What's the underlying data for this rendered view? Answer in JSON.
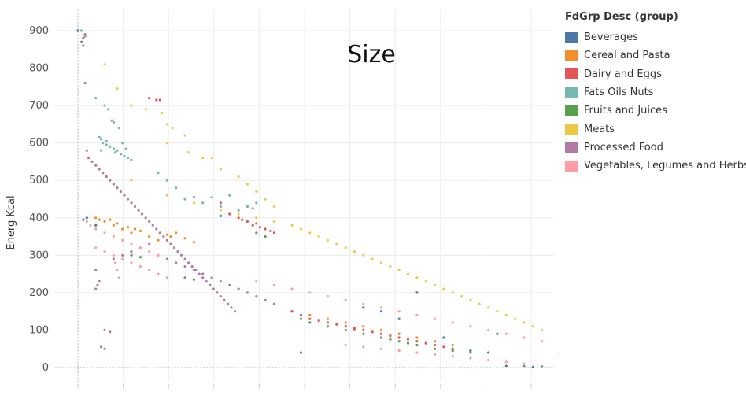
{
  "chart_data": {
    "type": "scatter",
    "title": "",
    "overlay_text": "Size",
    "xlabel": "",
    "ylabel": "Energ Kcal",
    "ylim": [
      0,
      920
    ],
    "yticks": [
      0,
      100,
      200,
      300,
      400,
      500,
      600,
      700,
      800,
      900
    ],
    "grid": true,
    "legend": {
      "title": "FdGrp Desc (group)",
      "position": "right"
    },
    "series": [
      {
        "name": "Beverages",
        "color": "#4e79a7",
        "points": [
          [
            0,
            900
          ],
          [
            0.2,
            870
          ],
          [
            0.5,
            400
          ],
          [
            0.3,
            395
          ],
          [
            25,
            3
          ],
          [
            26,
            2
          ],
          [
            24,
            4
          ],
          [
            25.5,
            1
          ],
          [
            27,
            35
          ],
          [
            23,
            40
          ],
          [
            22,
            45
          ],
          [
            21,
            50
          ],
          [
            23.5,
            90
          ],
          [
            20.5,
            80
          ],
          [
            18,
            130
          ],
          [
            17,
            150
          ],
          [
            19,
            200
          ],
          [
            16,
            160
          ],
          [
            12.5,
            40
          ],
          [
            8,
            405
          ],
          [
            1,
            380
          ]
        ]
      },
      {
        "name": "Cereal and Pasta",
        "color": "#f28e2b",
        "points": [
          [
            1,
            400
          ],
          [
            1.5,
            390
          ],
          [
            2,
            380
          ],
          [
            2.5,
            370
          ],
          [
            3,
            360
          ],
          [
            4,
            350
          ],
          [
            5,
            355
          ],
          [
            5.5,
            360
          ],
          [
            6,
            345
          ],
          [
            1.8,
            395
          ],
          [
            2.2,
            385
          ],
          [
            2.8,
            375
          ],
          [
            3.5,
            365
          ],
          [
            4.5,
            340
          ],
          [
            3.2,
            370
          ],
          [
            6.5,
            335
          ],
          [
            5.2,
            350
          ],
          [
            1.2,
            395
          ],
          [
            14,
            130
          ],
          [
            15,
            120
          ],
          [
            16,
            110
          ],
          [
            17,
            100
          ],
          [
            18,
            90
          ],
          [
            19,
            80
          ],
          [
            20,
            70
          ],
          [
            21,
            60
          ],
          [
            13,
            140
          ],
          [
            12,
            150
          ],
          [
            15.5,
            100
          ],
          [
            17.5,
            85
          ]
        ]
      },
      {
        "name": "Dairy and Eggs",
        "color": "#e15759",
        "points": [
          [
            0.3,
            880
          ],
          [
            0.4,
            890
          ],
          [
            4,
            720
          ],
          [
            4.4,
            715
          ],
          [
            4.6,
            715
          ],
          [
            8,
            440
          ],
          [
            9,
            400
          ],
          [
            9.5,
            390
          ],
          [
            10,
            385
          ],
          [
            10.5,
            370
          ],
          [
            11,
            360
          ],
          [
            9.2,
            395
          ],
          [
            9.8,
            380
          ],
          [
            10.2,
            375
          ],
          [
            10.8,
            365
          ],
          [
            8.5,
            410
          ],
          [
            12,
            150
          ],
          [
            13,
            130
          ],
          [
            14,
            120
          ],
          [
            15,
            110
          ],
          [
            16,
            100
          ],
          [
            17,
            90
          ],
          [
            18,
            80
          ],
          [
            19,
            70
          ],
          [
            20,
            60
          ],
          [
            21,
            50
          ],
          [
            20.5,
            55
          ],
          [
            19.5,
            65
          ],
          [
            18.5,
            75
          ],
          [
            17.5,
            85
          ],
          [
            16.5,
            95
          ],
          [
            15.5,
            105
          ],
          [
            14.5,
            115
          ],
          [
            13.5,
            125
          ],
          [
            12.5,
            140
          ]
        ]
      },
      {
        "name": "Fats Oils Nuts",
        "color": "#76b7b2",
        "points": [
          [
            0.2,
            900
          ],
          [
            0.4,
            885
          ],
          [
            1,
            720
          ],
          [
            1.5,
            700
          ],
          [
            1.7,
            690
          ],
          [
            1.9,
            660
          ],
          [
            2,
            655
          ],
          [
            2.3,
            640
          ],
          [
            1.3,
            610
          ],
          [
            1.4,
            600
          ],
          [
            1.6,
            595
          ],
          [
            1.8,
            590
          ],
          [
            2,
            585
          ],
          [
            2.2,
            580
          ],
          [
            2.4,
            570
          ],
          [
            2.6,
            565
          ],
          [
            2.8,
            560
          ],
          [
            3,
            555
          ],
          [
            1.2,
            615
          ],
          [
            1.6,
            605
          ],
          [
            2.1,
            575
          ],
          [
            2.5,
            600
          ],
          [
            1.3,
            580
          ],
          [
            2.7,
            585
          ],
          [
            5,
            500
          ],
          [
            6,
            450
          ],
          [
            7,
            440
          ],
          [
            8,
            430
          ],
          [
            9,
            420
          ],
          [
            9.5,
            430
          ],
          [
            10,
            440
          ],
          [
            10.5,
            450
          ],
          [
            8.5,
            460
          ],
          [
            7.5,
            455
          ],
          [
            6.5,
            455
          ],
          [
            4.5,
            520
          ],
          [
            5.5,
            480
          ],
          [
            9.8,
            425
          ]
        ]
      },
      {
        "name": "Fruits and Juices",
        "color": "#59a14f",
        "points": [
          [
            3,
            300
          ],
          [
            3.5,
            295
          ],
          [
            6,
            240
          ],
          [
            6.5,
            235
          ],
          [
            10,
            360
          ],
          [
            10.5,
            350
          ],
          [
            16,
            90
          ],
          [
            17,
            80
          ],
          [
            18,
            70
          ],
          [
            19,
            60
          ],
          [
            20,
            50
          ],
          [
            21,
            45
          ],
          [
            22,
            40
          ],
          [
            15,
            100
          ],
          [
            14,
            110
          ],
          [
            13,
            120
          ],
          [
            12.5,
            130
          ],
          [
            17.5,
            75
          ],
          [
            18.5,
            65
          ]
        ]
      },
      {
        "name": "Meats",
        "color": "#edc948",
        "points": [
          [
            1.5,
            810
          ],
          [
            2.2,
            745
          ],
          [
            3,
            700
          ],
          [
            3.8,
            690
          ],
          [
            4.7,
            680
          ],
          [
            5,
            650
          ],
          [
            5.3,
            640
          ],
          [
            6,
            620
          ],
          [
            7,
            560
          ],
          [
            8,
            530
          ],
          [
            9,
            510
          ],
          [
            9.5,
            490
          ],
          [
            10,
            470
          ],
          [
            10.5,
            450
          ],
          [
            11,
            430
          ],
          [
            5,
            600
          ],
          [
            6.2,
            575
          ],
          [
            7.5,
            560
          ],
          [
            3,
            500
          ],
          [
            5,
            460
          ],
          [
            6.5,
            440
          ],
          [
            8,
            420
          ],
          [
            9,
            410
          ],
          [
            10,
            400
          ],
          [
            11,
            390
          ],
          [
            12,
            380
          ],
          [
            12.5,
            370
          ],
          [
            13,
            360
          ],
          [
            13.5,
            350
          ],
          [
            14,
            340
          ],
          [
            14.5,
            330
          ],
          [
            15,
            320
          ],
          [
            15.5,
            310
          ],
          [
            16,
            300
          ],
          [
            16.5,
            290
          ],
          [
            17,
            280
          ],
          [
            17.5,
            270
          ],
          [
            18,
            260
          ],
          [
            18.5,
            250
          ],
          [
            19,
            240
          ],
          [
            19.5,
            230
          ],
          [
            20,
            220
          ],
          [
            20.5,
            210
          ],
          [
            21,
            200
          ],
          [
            21.5,
            190
          ],
          [
            22,
            180
          ],
          [
            22.5,
            170
          ],
          [
            23,
            160
          ],
          [
            23.5,
            150
          ],
          [
            24,
            140
          ],
          [
            24.5,
            130
          ],
          [
            25,
            120
          ],
          [
            25.5,
            110
          ],
          [
            26,
            100
          ]
        ]
      },
      {
        "name": "Processed Food",
        "color": "#b07aa1",
        "points": [
          [
            0.3,
            860
          ],
          [
            0.4,
            760
          ],
          [
            0.5,
            580
          ],
          [
            0.6,
            560
          ],
          [
            0.8,
            550
          ],
          [
            1,
            540
          ],
          [
            1.2,
            530
          ],
          [
            1.4,
            520
          ],
          [
            1.6,
            510
          ],
          [
            1.8,
            500
          ],
          [
            2,
            490
          ],
          [
            2.2,
            480
          ],
          [
            2.4,
            470
          ],
          [
            2.6,
            460
          ],
          [
            2.8,
            450
          ],
          [
            3,
            440
          ],
          [
            3.2,
            430
          ],
          [
            3.4,
            420
          ],
          [
            3.6,
            410
          ],
          [
            3.8,
            400
          ],
          [
            4,
            390
          ],
          [
            4.2,
            380
          ],
          [
            4.4,
            370
          ],
          [
            4.6,
            360
          ],
          [
            4.8,
            350
          ],
          [
            5,
            340
          ],
          [
            5.2,
            330
          ],
          [
            5.4,
            320
          ],
          [
            5.6,
            310
          ],
          [
            5.8,
            300
          ],
          [
            6,
            290
          ],
          [
            6.2,
            280
          ],
          [
            6.4,
            270
          ],
          [
            6.6,
            260
          ],
          [
            6.8,
            250
          ],
          [
            7,
            240
          ],
          [
            7.2,
            230
          ],
          [
            7.4,
            220
          ],
          [
            7.6,
            210
          ],
          [
            7.8,
            200
          ],
          [
            8,
            190
          ],
          [
            8.2,
            180
          ],
          [
            8.4,
            170
          ],
          [
            8.6,
            160
          ],
          [
            8.8,
            150
          ],
          [
            1,
            260
          ],
          [
            1.2,
            230
          ],
          [
            1.1,
            220
          ],
          [
            1,
            210
          ],
          [
            1.5,
            100
          ],
          [
            1.8,
            95
          ],
          [
            1.3,
            55
          ],
          [
            1.5,
            50
          ],
          [
            2,
            290
          ],
          [
            2.5,
            300
          ],
          [
            3,
            310
          ],
          [
            3.5,
            320
          ],
          [
            4,
            330
          ],
          [
            4.5,
            300
          ],
          [
            5,
            290
          ],
          [
            5.5,
            280
          ],
          [
            6,
            270
          ],
          [
            6.5,
            260
          ],
          [
            7,
            250
          ],
          [
            7.5,
            240
          ],
          [
            8,
            230
          ],
          [
            8.5,
            220
          ],
          [
            9,
            210
          ],
          [
            9.5,
            200
          ],
          [
            10,
            190
          ],
          [
            10.5,
            180
          ],
          [
            11,
            170
          ]
        ]
      },
      {
        "name": "Vegetables, Legumes and Herbs",
        "color": "#ff9da7",
        "points": [
          [
            0.5,
            390
          ],
          [
            0.7,
            380
          ],
          [
            1,
            370
          ],
          [
            1.5,
            360
          ],
          [
            2,
            350
          ],
          [
            2.5,
            340
          ],
          [
            3,
            330
          ],
          [
            3.5,
            320
          ],
          [
            4,
            310
          ],
          [
            4.5,
            300
          ],
          [
            1,
            320
          ],
          [
            1.5,
            310
          ],
          [
            2,
            300
          ],
          [
            2.5,
            290
          ],
          [
            3,
            280
          ],
          [
            3.5,
            270
          ],
          [
            4,
            260
          ],
          [
            4.5,
            250
          ],
          [
            5,
            240
          ],
          [
            2.1,
            280
          ],
          [
            2.2,
            260
          ],
          [
            2.3,
            240
          ],
          [
            10,
            230
          ],
          [
            11,
            220
          ],
          [
            12,
            210
          ],
          [
            13,
            200
          ],
          [
            14,
            190
          ],
          [
            15,
            180
          ],
          [
            16,
            170
          ],
          [
            17,
            160
          ],
          [
            18,
            150
          ],
          [
            19,
            140
          ],
          [
            20,
            130
          ],
          [
            21,
            120
          ],
          [
            22,
            110
          ],
          [
            23,
            100
          ],
          [
            24,
            90
          ],
          [
            25,
            80
          ],
          [
            26,
            70
          ],
          [
            15,
            60
          ],
          [
            16,
            55
          ],
          [
            17,
            50
          ],
          [
            18,
            45
          ],
          [
            19,
            40
          ],
          [
            20,
            35
          ],
          [
            21,
            30
          ],
          [
            22,
            25
          ],
          [
            23,
            20
          ],
          [
            24,
            15
          ],
          [
            25,
            10
          ]
        ]
      }
    ]
  }
}
